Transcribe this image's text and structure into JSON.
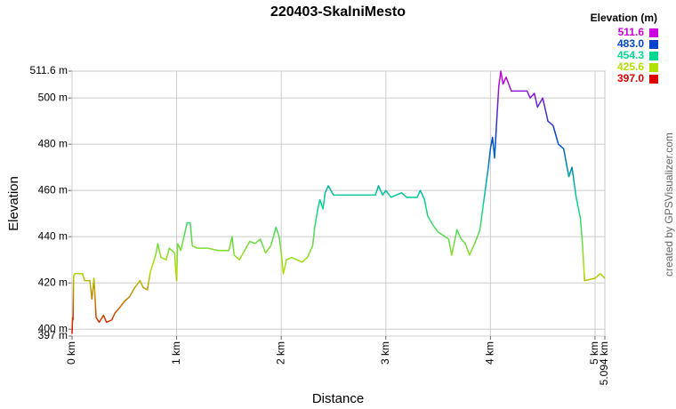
{
  "chart_data": {
    "type": "line",
    "title": "220403-SkalniMesto",
    "x_label": "Distance",
    "y_label": "Elevation",
    "legend_title": "Elevation (m)",
    "credit": "created by GPSVisualizer.com",
    "color_scale": [
      {
        "value": 511.6,
        "label": "511.6",
        "color": "#cc00dd"
      },
      {
        "value": 483.0,
        "label": "483.0",
        "color": "#0044cc"
      },
      {
        "value": 454.3,
        "label": "454.3",
        "color": "#00d890"
      },
      {
        "value": 425.6,
        "label": "425.6",
        "color": "#b0e000"
      },
      {
        "value": 397.0,
        "label": "397.0",
        "color": "#dd0000"
      }
    ],
    "grid": true,
    "xlim": [
      0,
      5.094
    ],
    "xticks": [
      {
        "value": 0,
        "label": "0 km"
      },
      {
        "value": 1,
        "label": "1 km"
      },
      {
        "value": 2,
        "label": "2 km"
      },
      {
        "value": 3,
        "label": "3 km"
      },
      {
        "value": 4,
        "label": "4 km"
      },
      {
        "value": 5,
        "label": "5 km"
      },
      {
        "value": 5.094,
        "label": "5.094 km"
      }
    ],
    "ylim": [
      397,
      511.6
    ],
    "yticks": [
      {
        "value": 397,
        "label": "397 m"
      },
      {
        "value": 400,
        "label": "400 m"
      },
      {
        "value": 420,
        "label": "420 m"
      },
      {
        "value": 440,
        "label": "440 m"
      },
      {
        "value": 460,
        "label": "460 m"
      },
      {
        "value": 480,
        "label": "480 m"
      },
      {
        "value": 500,
        "label": "500 m"
      },
      {
        "value": 511.6,
        "label": "511.6 m"
      }
    ],
    "x": [
      0,
      0.005,
      0.01,
      0.015,
      0.03,
      0.1,
      0.12,
      0.17,
      0.19,
      0.21,
      0.23,
      0.26,
      0.3,
      0.33,
      0.38,
      0.41,
      0.45,
      0.5,
      0.55,
      0.6,
      0.65,
      0.68,
      0.72,
      0.75,
      0.8,
      0.82,
      0.85,
      0.9,
      0.93,
      0.98,
      1.0,
      1.01,
      1.04,
      1.07,
      1.1,
      1.13,
      1.15,
      1.2,
      1.3,
      1.4,
      1.5,
      1.53,
      1.55,
      1.6,
      1.65,
      1.7,
      1.75,
      1.8,
      1.85,
      1.9,
      1.95,
      1.98,
      2.0,
      2.02,
      2.05,
      2.1,
      2.2,
      2.25,
      2.3,
      2.32,
      2.35,
      2.37,
      2.4,
      2.42,
      2.45,
      2.5,
      2.6,
      2.8,
      2.9,
      2.93,
      2.97,
      3.0,
      3.05,
      3.15,
      3.2,
      3.3,
      3.33,
      3.37,
      3.4,
      3.45,
      3.5,
      3.6,
      3.63,
      3.68,
      3.72,
      3.76,
      3.8,
      3.85,
      3.9,
      3.95,
      3.98,
      4.0,
      4.02,
      4.04,
      4.06,
      4.08,
      4.1,
      4.12,
      4.15,
      4.2,
      4.3,
      4.35,
      4.38,
      4.42,
      4.45,
      4.5,
      4.55,
      4.6,
      4.65,
      4.7,
      4.75,
      4.78,
      4.82,
      4.86,
      4.88,
      4.9,
      5.0,
      5.05,
      5.094
    ],
    "values": [
      398,
      405,
      404,
      423,
      424,
      424,
      421,
      421,
      413,
      422,
      405,
      403,
      406,
      403,
      404,
      407,
      409,
      412,
      414,
      418,
      421,
      418,
      417,
      425,
      432,
      437,
      431,
      430,
      435,
      433,
      421,
      437,
      434,
      440,
      446,
      446,
      436,
      435,
      435,
      434,
      434,
      440,
      432,
      430,
      434,
      438,
      437,
      439,
      433,
      436,
      444,
      440,
      433,
      424,
      430,
      431,
      429,
      431,
      436,
      444,
      452,
      456,
      452,
      459,
      462,
      458,
      458,
      458,
      458,
      462,
      458,
      460,
      457,
      459,
      457,
      457,
      460,
      456,
      449,
      445,
      442,
      439,
      432,
      443,
      439,
      437,
      432,
      437,
      443,
      460,
      470,
      478,
      483,
      474,
      490,
      505,
      511.6,
      506,
      509,
      503,
      503,
      503,
      500,
      502,
      496,
      500,
      490,
      488,
      480,
      478,
      466,
      470,
      457,
      448,
      437,
      421,
      422,
      424,
      422
    ]
  }
}
